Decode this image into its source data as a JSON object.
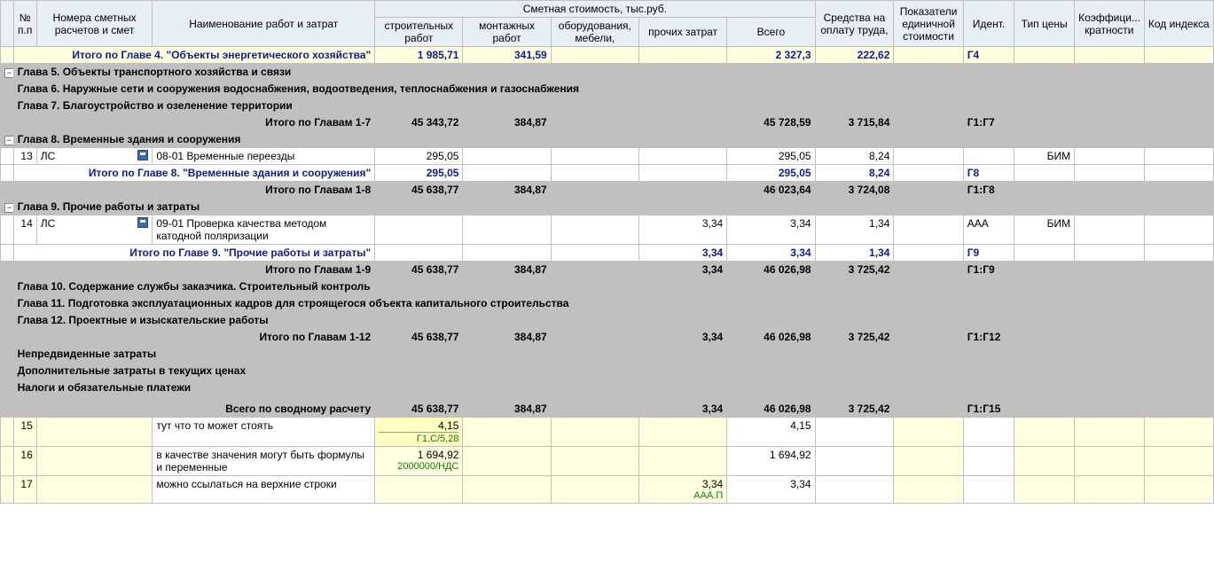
{
  "headers": {
    "exp": "",
    "num": "№ п.п",
    "codes": "Номера сметных расчетов и смет",
    "name": "Наименование работ и затрат",
    "smetnaya_group": "Сметная стоимость, тыс.руб.",
    "stroit": "строительных работ",
    "mont": "монтажных работ",
    "oborud": "оборудования, мебели,",
    "proch": "прочих затрат",
    "vsego": "Всего",
    "sredstva": "Средства на оплату труда,",
    "pokaz": "Показатели единичной стоимости",
    "ident": "Идент.",
    "tip": "Тип цены",
    "koef": "Коэффици... кратности",
    "kod": "Код индекса"
  },
  "rows": [
    {
      "type": "itogo_glava",
      "label": "Итого по Главе 4. \"Объекты энергетического хозяйства\"",
      "stroit": "1 985,71",
      "mont": "341,59",
      "vsego": "2 327,3",
      "sredstva": "222,62",
      "ident": "Г4",
      "pale": true
    },
    {
      "type": "header_grey",
      "label": "Глава 5. Объекты транспортного хозяйства и связи",
      "exp": "−"
    },
    {
      "type": "header_grey",
      "label": "Глава 6. Наружные сети и сооружения водоснабжения, водоотведения, теплоснабжения и газоснабжения",
      "exp": ""
    },
    {
      "type": "header_grey",
      "label": "Глава 7. Благоустройство и озеленение территории",
      "exp": ""
    },
    {
      "type": "itogo_glavam",
      "label": "Итого по Главам 1-7",
      "stroit": "45 343,72",
      "mont": "384,87",
      "vsego": "45 728,59",
      "sredstva": "3 715,84",
      "ident": "Г1:Г7"
    },
    {
      "type": "header_grey",
      "label": "Глава 8. Временные здания и сооружения",
      "exp": "−"
    },
    {
      "type": "data",
      "num": "13",
      "codes": "ЛС",
      "icon": true,
      "name": "08-01 Временные переезды",
      "stroit": "295,05",
      "vsego": "295,05",
      "sredstva": "8,24",
      "tip": "БИМ"
    },
    {
      "type": "itogo_glava",
      "label": "Итого по Главе 8. \"Временные здания и сооружения\"",
      "stroit": "295,05",
      "vsego": "295,05",
      "sredstva": "8,24",
      "ident": "Г8"
    },
    {
      "type": "itogo_glavam",
      "label": "Итого по Главам 1-8",
      "stroit": "45 638,77",
      "mont": "384,87",
      "vsego": "46 023,64",
      "sredstva": "3 724,08",
      "ident": "Г1:Г8"
    },
    {
      "type": "header_grey",
      "label": "Глава 9. Прочие работы и затраты",
      "exp": "−"
    },
    {
      "type": "data",
      "num": "14",
      "codes": "ЛС",
      "icon": true,
      "name": "09-01 Проверка качества методом катодной поляризации",
      "proch": "3,34",
      "vsego": "3,34",
      "sredstva": "1,34",
      "ident": "ААА",
      "tip": "БИМ"
    },
    {
      "type": "itogo_glava",
      "label": "Итого по Главе 9. \"Прочие работы и затраты\"",
      "proch": "3,34",
      "vsego": "3,34",
      "sredstva": "1,34",
      "ident": "Г9"
    },
    {
      "type": "itogo_glavam",
      "label": "Итого по Главам 1-9",
      "stroit": "45 638,77",
      "mont": "384,87",
      "proch": "3,34",
      "vsego": "46 026,98",
      "sredstva": "3 725,42",
      "ident": "Г1:Г9"
    },
    {
      "type": "header_grey",
      "label": "Глава 10. Содержание службы заказчика. Строительный контроль",
      "exp": ""
    },
    {
      "type": "header_grey",
      "label": "Глава 11. Подготовка эксплуатационных кадров для строящегося объекта капитального строительства",
      "exp": ""
    },
    {
      "type": "header_grey",
      "label": "Глава 12. Проектные и изыскательские работы",
      "exp": ""
    },
    {
      "type": "itogo_glavam",
      "label": "Итого по Главам 1-12",
      "stroit": "45 638,77",
      "mont": "384,87",
      "proch": "3,34",
      "vsego": "46 026,98",
      "sredstva": "3 725,42",
      "ident": "Г1:Г12"
    },
    {
      "type": "header_grey",
      "label": "Непредвиденные затраты",
      "exp": ""
    },
    {
      "type": "header_grey",
      "label": "Дополнительные затраты в текущих ценах",
      "exp": ""
    },
    {
      "type": "header_grey",
      "label": "Налоги и обязательные платежи",
      "exp": ""
    },
    {
      "type": "header_grey",
      "label": "",
      "exp": "",
      "blank": true
    },
    {
      "type": "vsego",
      "label": "Всего по сводному расчету",
      "stroit": "45 638,77",
      "mont": "384,87",
      "proch": "3,34",
      "vsego": "46 026,98",
      "sredstva": "3 725,42",
      "ident": "Г1:Г15"
    },
    {
      "type": "user",
      "num": "15",
      "name": "тут что то может стоять",
      "stroit": "4,15",
      "stroit_sub": "Г1.С/5,28",
      "stroit_hl": true,
      "vsego": "4,15"
    },
    {
      "type": "user",
      "num": "16",
      "name": "в качестве значения могут быть формулы и переменные",
      "stroit": "1 694,92",
      "stroit_sub": "2000000/НДС",
      "vsego": "1 694,92"
    },
    {
      "type": "user",
      "num": "17",
      "name": "можно ссылаться на верхние строки",
      "proch": "3,34",
      "proch_sub": "ААА.П",
      "vsego": "3,34"
    }
  ]
}
